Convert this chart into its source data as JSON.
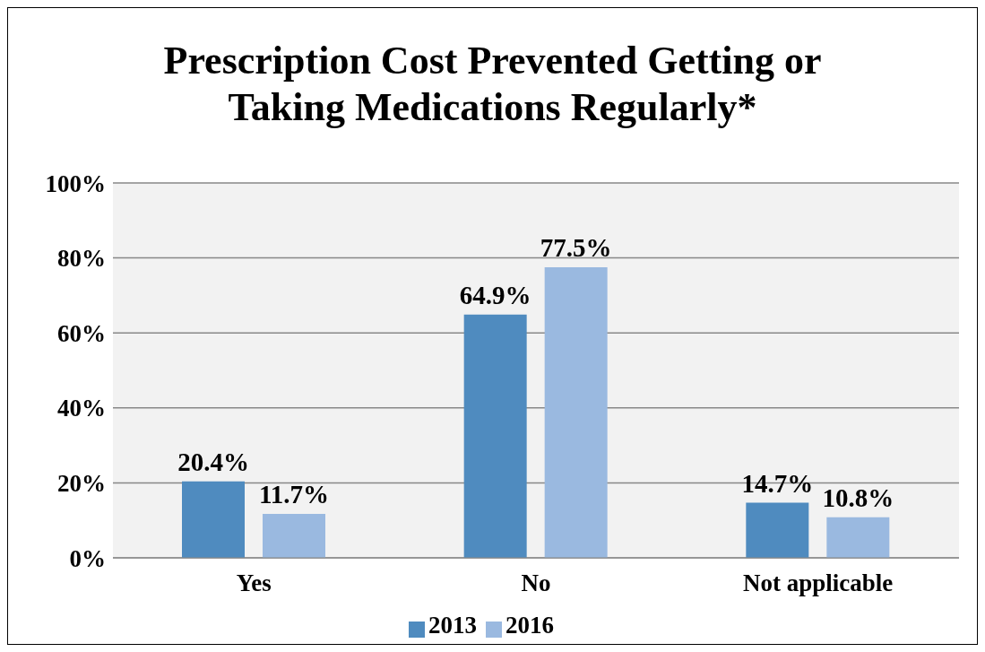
{
  "chart_data": {
    "type": "bar",
    "title": "Prescription Cost Prevented Getting or Taking Medications Regularly*",
    "categories": [
      "Yes",
      "No",
      "Not applicable"
    ],
    "series": [
      {
        "name": "2013",
        "color": "#4f8bbf",
        "values": [
          20.4,
          64.9,
          14.7
        ],
        "value_labels": [
          "20.4%",
          "64.9%",
          "14.7%"
        ]
      },
      {
        "name": "2016",
        "color": "#9ab9e0",
        "values": [
          11.7,
          77.5,
          10.8
        ],
        "value_labels": [
          "11.7%",
          "77.5%",
          "10.8%"
        ]
      }
    ],
    "ylim": [
      0,
      100
    ],
    "yticks": [
      {
        "value": 0,
        "label": "0%"
      },
      {
        "value": 20,
        "label": "20%"
      },
      {
        "value": 40,
        "label": "40%"
      },
      {
        "value": 60,
        "label": "60%"
      },
      {
        "value": 80,
        "label": "80%"
      },
      {
        "value": 100,
        "label": "100%"
      }
    ],
    "grid": "y",
    "legend": "bottom"
  }
}
